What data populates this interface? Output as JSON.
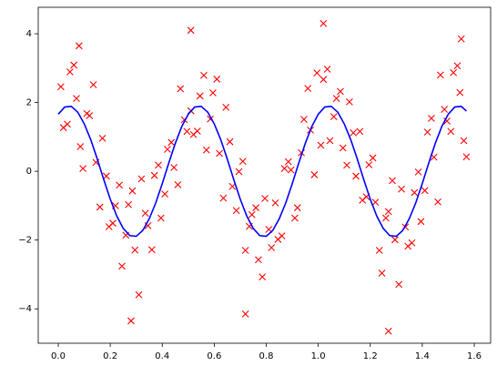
{
  "chart_data": {
    "type": "scatter",
    "xlim": [
      -0.077,
      1.663
    ],
    "ylim": [
      -5.0,
      4.77
    ],
    "xticks": [
      {
        "value": 0,
        "label": "0.0"
      },
      0.2,
      0.4,
      0.6,
      0.8,
      {
        "value": 1,
        "label": "1.0"
      },
      1.2,
      1.4,
      1.6
    ],
    "yticks": [
      {
        "value": -4,
        "label": "−4"
      },
      {
        "value": -2,
        "label": "−2"
      },
      0,
      2,
      4
    ],
    "series": [
      {
        "type": "scatter",
        "color": "#ff0000",
        "x": [
          0.01,
          0.02,
          0.035,
          0.045,
          0.06,
          0.07,
          0.085,
          0.095,
          0.11,
          0.12,
          0.135,
          0.145,
          0.16,
          0.17,
          0.185,
          0.195,
          0.21,
          0.22,
          0.235,
          0.245,
          0.26,
          0.27,
          0.285,
          0.295,
          0.31,
          0.32,
          0.335,
          0.345,
          0.36,
          0.37,
          0.385,
          0.395,
          0.41,
          0.42,
          0.435,
          0.445,
          0.46,
          0.47,
          0.485,
          0.495,
          0.51,
          0.52,
          0.535,
          0.545,
          0.56,
          0.57,
          0.585,
          0.595,
          0.61,
          0.62,
          0.635,
          0.645,
          0.66,
          0.67,
          0.685,
          0.695,
          0.71,
          0.72,
          0.735,
          0.745,
          0.76,
          0.77,
          0.785,
          0.795,
          0.81,
          0.82,
          0.835,
          0.845,
          0.86,
          0.87,
          0.885,
          0.895,
          0.91,
          0.92,
          0.935,
          0.945,
          0.96,
          0.97,
          0.985,
          0.995,
          1.01,
          1.02,
          1.035,
          1.045,
          1.06,
          1.07,
          1.085,
          1.095,
          1.11,
          1.12,
          1.135,
          1.145,
          1.16,
          1.17,
          1.185,
          1.195,
          1.21,
          1.22,
          1.235,
          1.245,
          1.26,
          1.27,
          1.285,
          1.295,
          1.31,
          1.32,
          1.335,
          1.345,
          1.36,
          1.37,
          1.385,
          1.395,
          1.41,
          1.42,
          1.435,
          1.445,
          1.46,
          1.47,
          1.485,
          1.495,
          1.51,
          1.52,
          1.535,
          1.545,
          1.56,
          1.57,
          0.28,
          1.27,
          1.02,
          0.51,
          0.72,
          0.08,
          1.55
        ],
        "values": [
          2.46,
          1.27,
          1.37,
          2.89,
          3.09,
          2.12,
          0.72,
          0.08,
          1.68,
          1.62,
          2.52,
          0.26,
          -1.04,
          0.96,
          -0.14,
          -1.61,
          -1.51,
          -1.0,
          -0.4,
          -2.76,
          -1.86,
          -0.97,
          -0.57,
          -2.29,
          -3.59,
          -0.22,
          -1.22,
          -1.58,
          -2.28,
          -0.12,
          0.18,
          -1.36,
          -0.66,
          0.64,
          0.84,
          0.11,
          -0.39,
          2.4,
          1.5,
          1.16,
          1.76,
          1.07,
          1.17,
          2.19,
          2.79,
          0.62,
          1.52,
          2.28,
          2.68,
          0.52,
          -0.78,
          1.86,
          0.86,
          -0.44,
          -1.14,
          -0.01,
          0.29,
          -2.3,
          -1.6,
          -1.26,
          -1.06,
          -2.57,
          -3.07,
          -0.79,
          -1.69,
          -2.22,
          -0.92,
          -1.98,
          -1.88,
          0.08,
          0.28,
          0.04,
          -1.36,
          -1.06,
          0.54,
          1.51,
          2.41,
          1.2,
          -0.1,
          2.86,
          0.76,
          2.67,
          2.97,
          0.89,
          1.59,
          2.12,
          2.32,
          0.68,
          0.18,
          2.02,
          1.12,
          -0.14,
          1.16,
          -0.84,
          -0.74,
          0.19,
          0.39,
          -0.9,
          -2.3,
          -2.96,
          -1.36,
          -1.17,
          -0.27,
          -1.99,
          -3.29,
          -0.52,
          -1.62,
          -2.18,
          -2.08,
          -0.62,
          -0.02,
          -1.46,
          -0.56,
          1.14,
          1.54,
          0.41,
          -0.89,
          2.8,
          1.8,
          1.46,
          1.16,
          2.87,
          3.07,
          2.29,
          0.89,
          0.42,
          -4.35,
          -4.65,
          4.3,
          4.1,
          -4.15,
          3.65,
          3.85
        ]
      },
      {
        "type": "line",
        "color": "#0000ff",
        "x": [
          0,
          0.025,
          0.05,
          0.075,
          0.1,
          0.125,
          0.15,
          0.175,
          0.2,
          0.225,
          0.25,
          0.275,
          0.3,
          0.325,
          0.35,
          0.375,
          0.4,
          0.425,
          0.45,
          0.475,
          0.5,
          0.525,
          0.55,
          0.575,
          0.6,
          0.625,
          0.65,
          0.675,
          0.7,
          0.725,
          0.75,
          0.775,
          0.8,
          0.825,
          0.85,
          0.875,
          0.9,
          0.925,
          0.95,
          0.975,
          1,
          1.025,
          1.05,
          1.075,
          1.1,
          1.125,
          1.15,
          1.175,
          1.2,
          1.225,
          1.25,
          1.275,
          1.3,
          1.325,
          1.35,
          1.375,
          1.4,
          1.425,
          1.45,
          1.475,
          1.5,
          1.525,
          1.55,
          1.57
        ],
        "values": [
          1.66,
          1.87,
          1.89,
          1.72,
          1.38,
          0.92,
          0.36,
          -0.24,
          -0.81,
          -1.3,
          -1.66,
          -1.87,
          -1.89,
          -1.72,
          -1.38,
          -0.92,
          -0.36,
          0.24,
          0.81,
          1.3,
          1.66,
          1.87,
          1.89,
          1.72,
          1.38,
          0.92,
          0.36,
          -0.24,
          -0.81,
          -1.3,
          -1.66,
          -1.87,
          -1.89,
          -1.72,
          -1.38,
          -0.92,
          -0.36,
          0.24,
          0.81,
          1.3,
          1.66,
          1.87,
          1.89,
          1.72,
          1.38,
          0.92,
          0.36,
          -0.24,
          -0.81,
          -1.3,
          -1.66,
          -1.87,
          -1.89,
          -1.72,
          -1.38,
          -0.92,
          -0.36,
          0.24,
          0.81,
          1.3,
          1.66,
          1.87,
          1.89,
          1.75
        ]
      }
    ]
  }
}
